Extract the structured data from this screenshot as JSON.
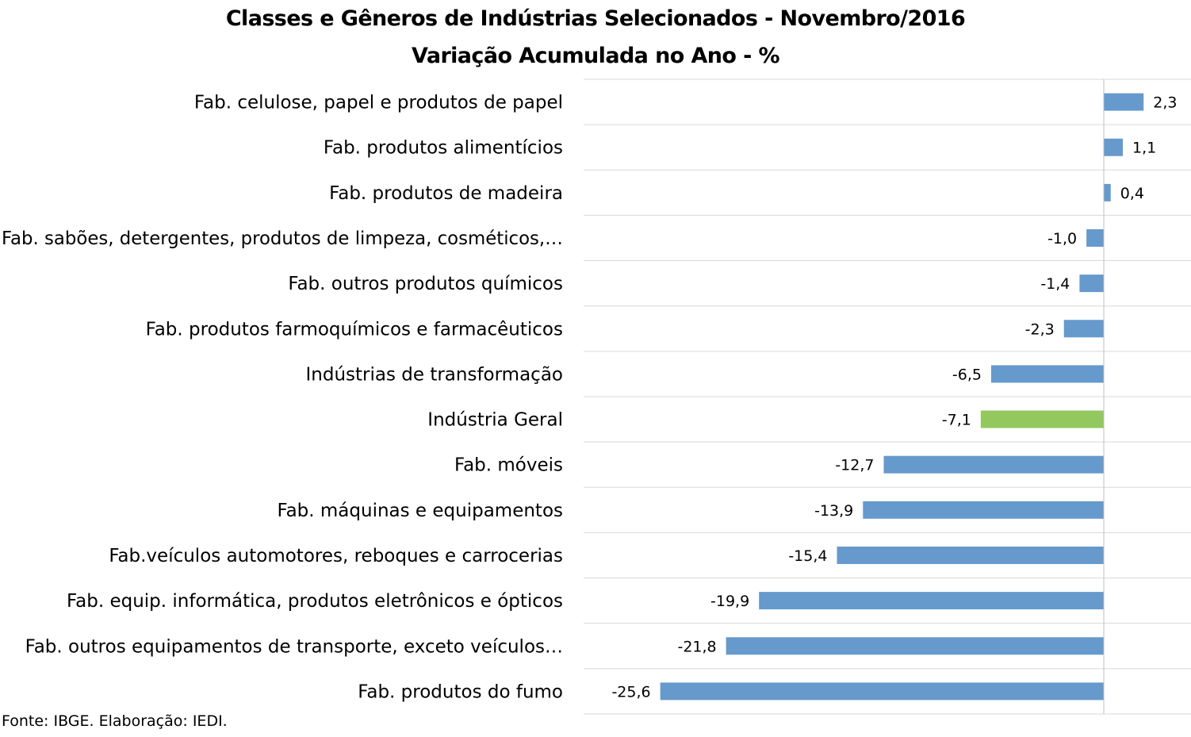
{
  "chart_data": {
    "type": "bar",
    "orientation": "horizontal",
    "title": "Classes e Gêneros de Indústrias Selecionados - Novembro/2016",
    "subtitle": "Variação Acumulada no Ano - %",
    "categories": [
      "Fab. celulose, papel e produtos de papel",
      "Fab. produtos alimentícios",
      "Fab. produtos de madeira",
      "Fab. sabões, detergentes, produtos de limpeza, cosméticos,…",
      "Fab. outros produtos químicos",
      "Fab. produtos farmoquímicos e farmacêuticos",
      "Indústrias de transformação",
      "Indústria Geral",
      "Fab. móveis",
      "Fab. máquinas e equipamentos",
      "Fab.veículos automotores, reboques e carrocerias",
      "Fab. equip. informática, produtos eletrônicos e ópticos",
      "Fab. outros equipamentos de transporte, exceto veículos…",
      "Fab. produtos do fumo"
    ],
    "values": [
      2.3,
      1.1,
      0.4,
      -1.0,
      -1.4,
      -2.3,
      -6.5,
      -7.1,
      -12.7,
      -13.9,
      -15.4,
      -19.9,
      -21.8,
      -25.6
    ],
    "value_labels": [
      "2,3",
      "1,1",
      "0,4",
      "-1,0",
      "-1,4",
      "-2,3",
      "-6,5",
      "-7,1",
      "-12,7",
      "-13,9",
      "-15,4",
      "-19,9",
      "-21,8",
      "-25,6"
    ],
    "highlight_index": 7,
    "xlim": [
      -30,
      5
    ],
    "grid": "horizontal lines between categories",
    "legend": "none",
    "colors": {
      "bar": "#6699CC",
      "highlight": "#92C85E",
      "gridline": "#D9D9D9",
      "axis": "#BFBFBF"
    }
  },
  "source": "Fonte: IBGE. Elaboração: IEDI."
}
